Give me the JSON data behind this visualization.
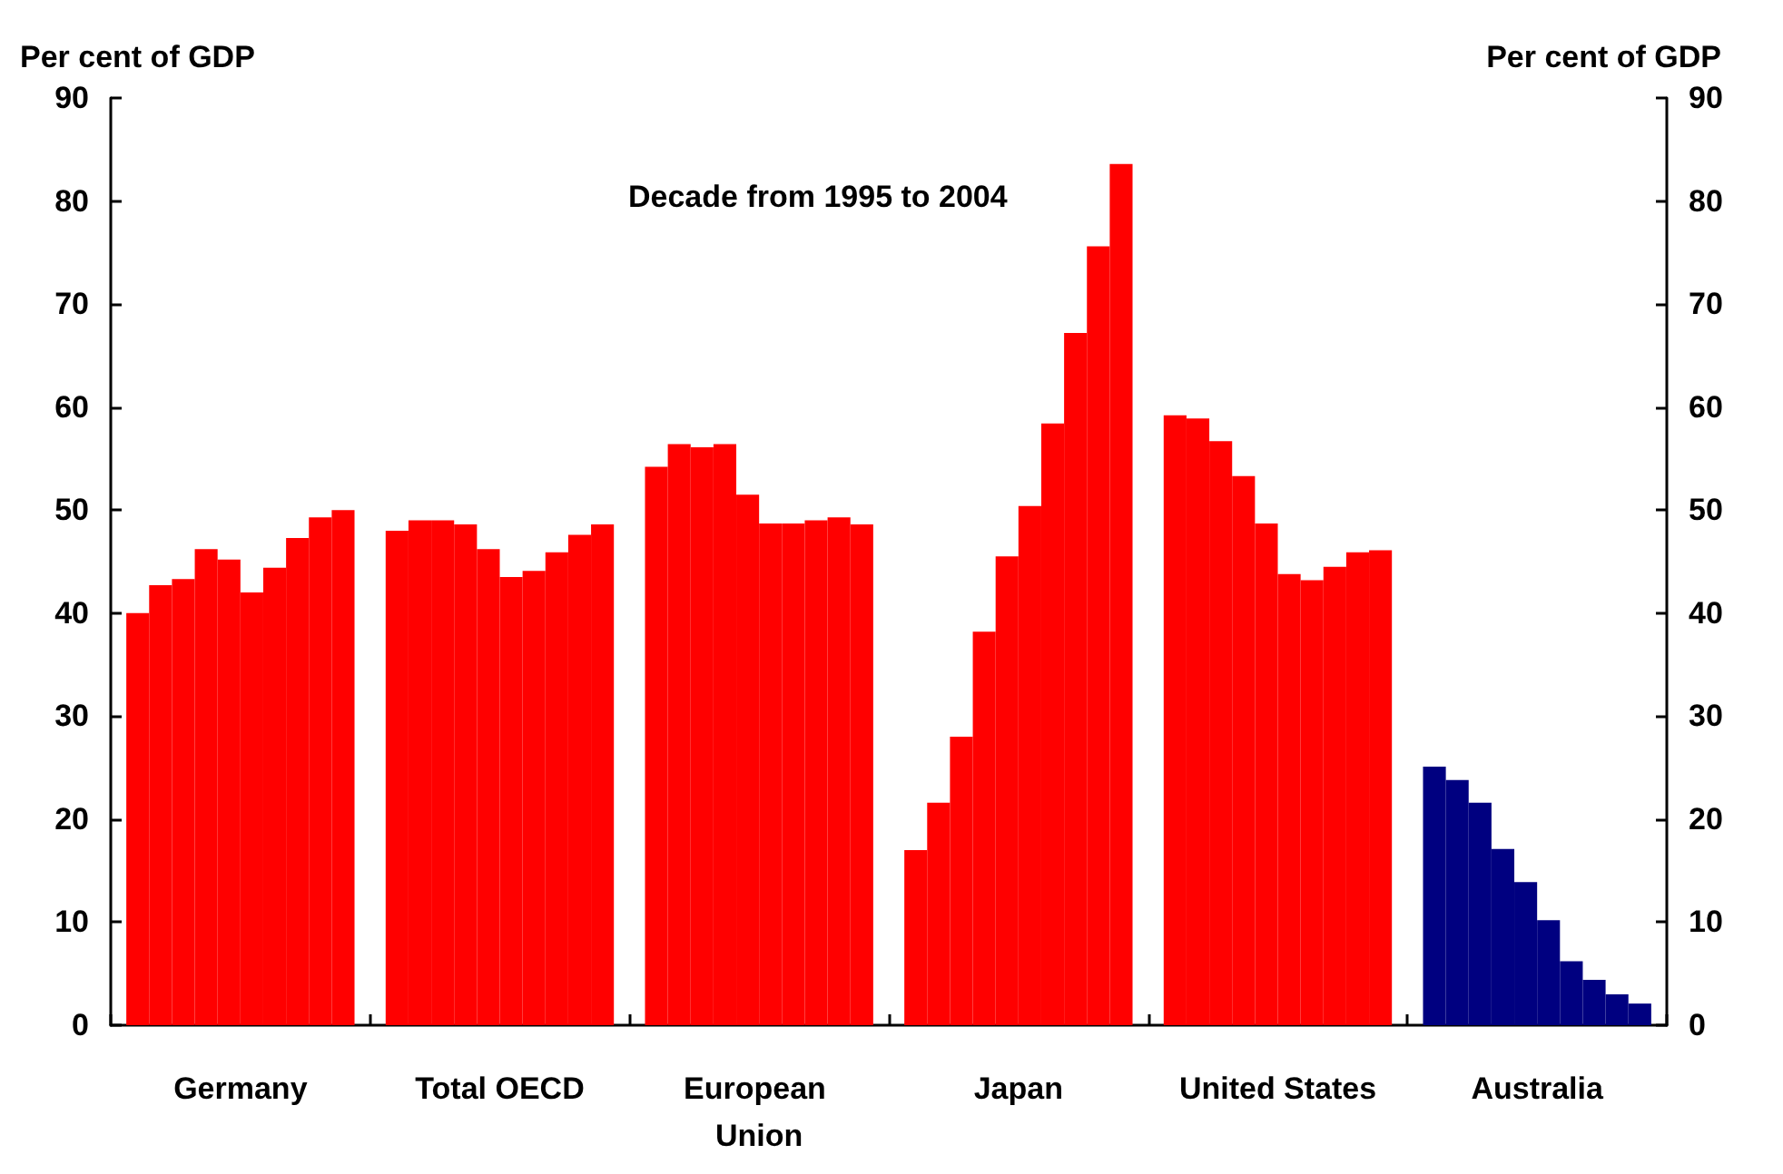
{
  "chart_data": {
    "type": "bar",
    "categories": [
      "Germany",
      "Total OECD",
      "European Union",
      "Japan",
      "United States",
      "Australia"
    ],
    "series": [
      {
        "colors": [
          "#ff0000",
          "#ff0000",
          "#ff0000",
          "#ff0000",
          "#ff0000",
          "#000080"
        ],
        "values": [
          40,
          48,
          54.2,
          17,
          59.2,
          25.1
        ]
      },
      {
        "colors": [
          "#ff0000",
          "#ff0000",
          "#ff0000",
          "#ff0000",
          "#ff0000",
          "#000080"
        ],
        "values": [
          42.7,
          49,
          56.4,
          21.6,
          58.9,
          23.8
        ]
      },
      {
        "colors": [
          "#ff0000",
          "#ff0000",
          "#ff0000",
          "#ff0000",
          "#ff0000",
          "#000080"
        ],
        "values": [
          43.3,
          49,
          56.1,
          28,
          56.7,
          21.6
        ]
      },
      {
        "colors": [
          "#ff0000",
          "#ff0000",
          "#ff0000",
          "#ff0000",
          "#ff0000",
          "#000080"
        ],
        "values": [
          46.2,
          48.6,
          56.4,
          38.2,
          53.3,
          17.1
        ]
      },
      {
        "colors": [
          "#ff0000",
          "#ff0000",
          "#ff0000",
          "#ff0000",
          "#ff0000",
          "#000080"
        ],
        "values": [
          45.2,
          46.2,
          51.5,
          45.5,
          48.7,
          13.9
        ]
      },
      {
        "colors": [
          "#ff0000",
          "#ff0000",
          "#ff0000",
          "#ff0000",
          "#ff0000",
          "#000080"
        ],
        "values": [
          42,
          43.5,
          48.7,
          50.4,
          43.8,
          10.2
        ]
      },
      {
        "colors": [
          "#ff0000",
          "#ff0000",
          "#ff0000",
          "#ff0000",
          "#ff0000",
          "#000080"
        ],
        "values": [
          44.4,
          44.1,
          48.7,
          58.4,
          43.2,
          6.2
        ]
      },
      {
        "colors": [
          "#ff0000",
          "#ff0000",
          "#ff0000",
          "#ff0000",
          "#ff0000",
          "#000080"
        ],
        "values": [
          47.3,
          45.9,
          49,
          67.2,
          44.5,
          4.4
        ]
      },
      {
        "colors": [
          "#ff0000",
          "#ff0000",
          "#ff0000",
          "#ff0000",
          "#ff0000",
          "#000080"
        ],
        "values": [
          49.3,
          47.6,
          49.3,
          75.6,
          45.9,
          3
        ]
      },
      {
        "colors": [
          "#ff0000",
          "#ff0000",
          "#ff0000",
          "#ff0000",
          "#ff0000",
          "#000080"
        ],
        "values": [
          50,
          48.6,
          48.6,
          83.6,
          46.1,
          2.1
        ]
      }
    ],
    "ylabel": "Per cent of GDP",
    "y2label": "Per cent of GDP",
    "ylim": [
      0,
      90
    ],
    "yticks": [
      0,
      10,
      20,
      30,
      40,
      50,
      60,
      70,
      80,
      90
    ],
    "y2lim": [
      0,
      90
    ],
    "y2ticks": [
      0,
      10,
      20,
      30,
      40,
      50,
      60,
      70,
      80,
      90
    ],
    "annotations": [
      "Decade from 1995 to 2004"
    ],
    "grid": false
  }
}
